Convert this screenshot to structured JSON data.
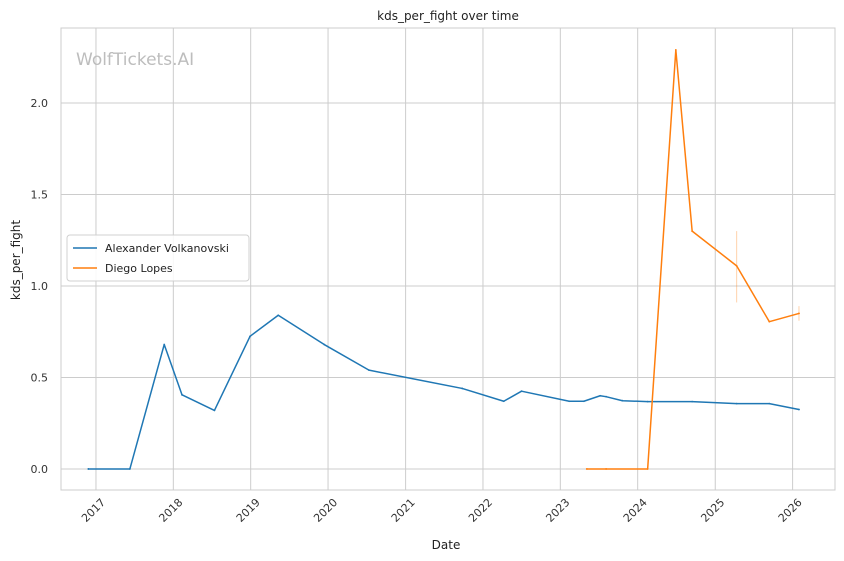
{
  "chart_data": {
    "type": "line",
    "title": "kds_per_fight over time",
    "xlabel": "Date",
    "ylabel": "kds_per_fight",
    "watermark": "WolfTickets.AI",
    "xlim": [
      "2016-07-20",
      "2026-07-20"
    ],
    "ylim": [
      -0.115,
      2.41
    ],
    "grid": true,
    "legend_position": "center-left",
    "x_ticks": [
      {
        "date": "2017-01-01",
        "label": "2017"
      },
      {
        "date": "2018-01-01",
        "label": "2018"
      },
      {
        "date": "2019-01-01",
        "label": "2019"
      },
      {
        "date": "2020-01-01",
        "label": "2020"
      },
      {
        "date": "2021-01-01",
        "label": "2021"
      },
      {
        "date": "2022-01-01",
        "label": "2022"
      },
      {
        "date": "2023-01-01",
        "label": "2023"
      },
      {
        "date": "2024-01-01",
        "label": "2024"
      },
      {
        "date": "2025-01-01",
        "label": "2025"
      },
      {
        "date": "2026-01-01",
        "label": "2026"
      }
    ],
    "y_ticks": [
      {
        "value": 0.0,
        "label": "0.0"
      },
      {
        "value": 0.5,
        "label": "0.5"
      },
      {
        "value": 1.0,
        "label": "1.0"
      },
      {
        "value": 1.5,
        "label": "1.5"
      },
      {
        "value": 2.0,
        "label": "2.0"
      }
    ],
    "series": [
      {
        "name": "Alexander Volkanovski",
        "color": "#1f77b4",
        "points": [
          {
            "x": "2016-11-26",
            "y": 0.0
          },
          {
            "x": "2017-06-10",
            "y": 0.0
          },
          {
            "x": "2017-11-19",
            "y": 0.68
          },
          {
            "x": "2018-02-11",
            "y": 0.405
          },
          {
            "x": "2018-07-14",
            "y": 0.32
          },
          {
            "x": "2018-12-29",
            "y": 0.725
          },
          {
            "x": "2019-05-11",
            "y": 0.84
          },
          {
            "x": "2019-12-14",
            "y": 0.68
          },
          {
            "x": "2020-07-12",
            "y": 0.54
          },
          {
            "x": "2021-09-25",
            "y": 0.44
          },
          {
            "x": "2022-04-09",
            "y": 0.37
          },
          {
            "x": "2022-07-02",
            "y": 0.425
          },
          {
            "x": "2023-02-12",
            "y": 0.37
          },
          {
            "x": "2023-04-22",
            "y": 0.37
          },
          {
            "x": "2023-07-08",
            "y": 0.4
          },
          {
            "x": "2023-08-05",
            "y": 0.395
          },
          {
            "x": "2023-10-21",
            "y": 0.373
          },
          {
            "x": "2024-02-17",
            "y": 0.368
          },
          {
            "x": "2024-09-14",
            "y": 0.368
          },
          {
            "x": "2025-04-12",
            "y": 0.357
          },
          {
            "x": "2025-09-13",
            "y": 0.357
          },
          {
            "x": "2026-01-31",
            "y": 0.325
          }
        ]
      },
      {
        "name": "Diego Lopes",
        "color": "#ff7f0e",
        "points": [
          {
            "x": "2023-05-06",
            "y": 0.0
          },
          {
            "x": "2023-08-05",
            "y": 0.0
          },
          {
            "x": "2024-02-17",
            "y": 0.0
          },
          {
            "x": "2024-06-29",
            "y": 2.29
          },
          {
            "x": "2024-09-14",
            "y": 1.3
          },
          {
            "x": "2025-04-12",
            "y": 1.11
          },
          {
            "x": "2025-09-13",
            "y": 0.805
          },
          {
            "x": "2026-01-31",
            "y": 0.85
          }
        ],
        "error_bars": [
          {
            "x": "2025-04-12",
            "low": 0.91,
            "high": 1.3
          },
          {
            "x": "2026-01-31",
            "low": 0.81,
            "high": 0.89
          }
        ]
      }
    ]
  }
}
